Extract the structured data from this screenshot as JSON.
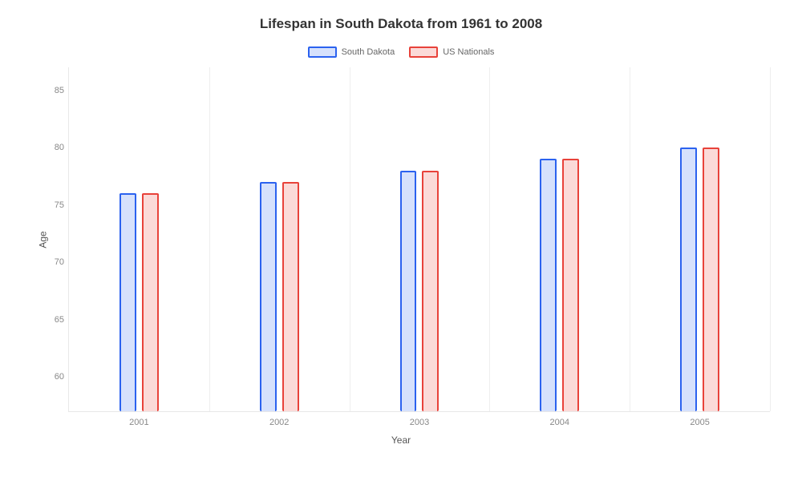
{
  "chart": {
    "type": "bar",
    "title": "Lifespan in South Dakota from 1961 to 2008",
    "title_fontsize": 17,
    "x_label": "Year",
    "y_label": "Age",
    "label_fontsize": 12,
    "background_color": "#ffffff",
    "grid_color": "#eeeeee",
    "axis_color": "#e8e8e8",
    "tick_font_color": "#888888",
    "tick_fontsize": 11,
    "legend_fontsize": 11,
    "ylim": [
      57,
      87
    ],
    "yticks": [
      60,
      65,
      70,
      75,
      80,
      85
    ],
    "categories": [
      "2001",
      "2002",
      "2003",
      "2004",
      "2005"
    ],
    "series": [
      {
        "name": "South Dakota",
        "color": "#2b62ef",
        "fill": "#d6e1fc",
        "values": [
          76,
          77,
          78,
          79,
          80
        ]
      },
      {
        "name": "US Nationals",
        "color": "#e8423a",
        "fill": "#fbdad8",
        "values": [
          76,
          77,
          78,
          79,
          80
        ]
      }
    ],
    "bar_border_width": 2,
    "bar_rel_width": 0.12,
    "bar_gap_rel": 0.04
  }
}
